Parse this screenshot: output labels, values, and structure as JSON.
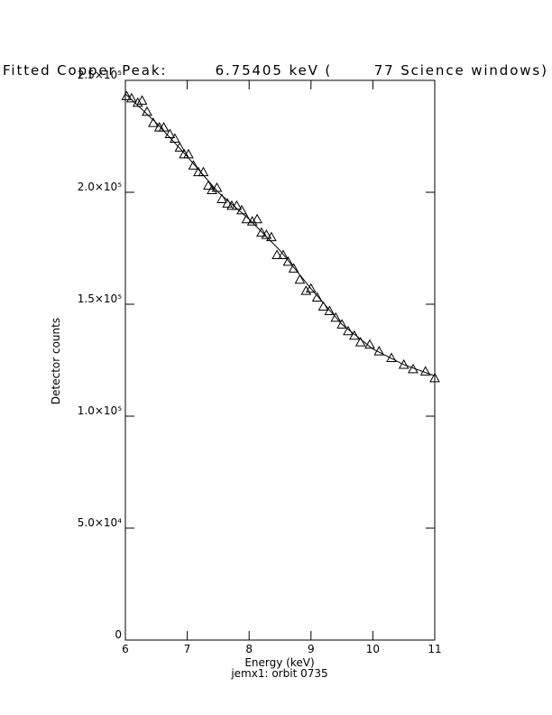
{
  "chart_data": {
    "type": "scatter",
    "title": "Fitted Copper Peak:        6.75405 keV (       77 Science windows)",
    "subtitle": "jemx1: orbit 0735",
    "x_label": "Energy (keV)",
    "y_label": "Detector counts",
    "xlim": [
      6,
      11
    ],
    "ylim": [
      0,
      250000
    ],
    "xticks": [
      6,
      7,
      8,
      9,
      10,
      11
    ],
    "yticks": [
      0,
      {
        "value": 50000,
        "label": "5.0×10⁴"
      },
      {
        "value": 100000,
        "label": "1.0×10⁵"
      },
      {
        "value": 150000,
        "label": "1.5×10⁵"
      },
      {
        "value": 200000,
        "label": "2.0×10⁵"
      },
      {
        "value": 250000,
        "label": "2.5×10⁵"
      }
    ],
    "grid": false,
    "series": [
      {
        "marker": "triangle",
        "color": "#000000",
        "x": [
          6.02,
          6.1,
          6.2,
          6.27,
          6.35,
          6.45,
          6.55,
          6.62,
          6.72,
          6.8,
          6.88,
          6.95,
          7.02,
          7.1,
          7.18,
          7.26,
          7.34,
          7.4,
          7.48,
          7.56,
          7.65,
          7.72,
          7.8,
          7.88,
          7.96,
          8.05,
          8.13,
          8.2,
          8.28,
          8.36,
          8.45,
          8.55,
          8.63,
          8.72,
          8.82,
          8.92,
          9.0,
          9.1,
          9.2,
          9.3,
          9.4,
          9.5,
          9.6,
          9.7,
          9.8,
          9.95,
          10.1,
          10.3,
          10.5,
          10.65,
          10.85,
          11.0
        ],
        "values": [
          243000,
          242000,
          240000,
          241000,
          236000,
          231000,
          229000,
          229000,
          226000,
          224000,
          220000,
          217000,
          217000,
          212000,
          209000,
          209000,
          203000,
          201000,
          202000,
          197000,
          195000,
          194000,
          194000,
          192000,
          188000,
          187000,
          188000,
          182000,
          181000,
          180000,
          172000,
          172000,
          169000,
          166000,
          161000,
          156000,
          157000,
          153000,
          149000,
          147000,
          144000,
          141000,
          138000,
          136000,
          133000,
          132000,
          129000,
          126000,
          123000,
          121000,
          120000,
          117000
        ]
      },
      {
        "marker": "line",
        "color": "#000000",
        "x": [
          6.0,
          6.5,
          7.0,
          7.5,
          8.0,
          8.5,
          9.0,
          9.5,
          10.0,
          10.5,
          11.0
        ],
        "values": [
          244000,
          231000,
          216000,
          200000,
          188000,
          174000,
          157000,
          141000,
          130000,
          123000,
          118000
        ]
      }
    ]
  }
}
